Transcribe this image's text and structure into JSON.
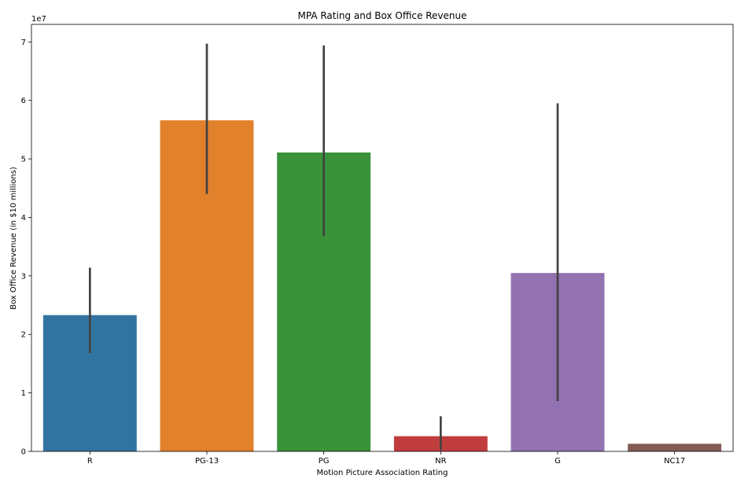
{
  "chart_data": {
    "type": "bar",
    "title": "MPA Rating and Box Office Revenue",
    "xlabel": "Motion Picture Association Rating",
    "ylabel": "Box Office Revenue (in $10 millions)",
    "y_scale_note": "1e7",
    "categories": [
      "R",
      "PG-13",
      "PG",
      "NR",
      "G",
      "NC17"
    ],
    "values": [
      2.33,
      5.66,
      5.11,
      0.26,
      3.05,
      0.13
    ],
    "error_low": [
      1.68,
      4.4,
      3.68,
      0.02,
      0.86,
      null
    ],
    "error_high": [
      3.14,
      6.97,
      6.94,
      0.6,
      5.95,
      null
    ],
    "ylim": [
      0,
      7.3
    ],
    "yticks": [
      0,
      1,
      2,
      3,
      4,
      5,
      6,
      7
    ],
    "colors": [
      "#3274a1",
      "#e1812c",
      "#3a923a",
      "#c03d3e",
      "#9372b2",
      "#845b53"
    ],
    "error_color": "#424242",
    "grid": false,
    "legend": false
  }
}
